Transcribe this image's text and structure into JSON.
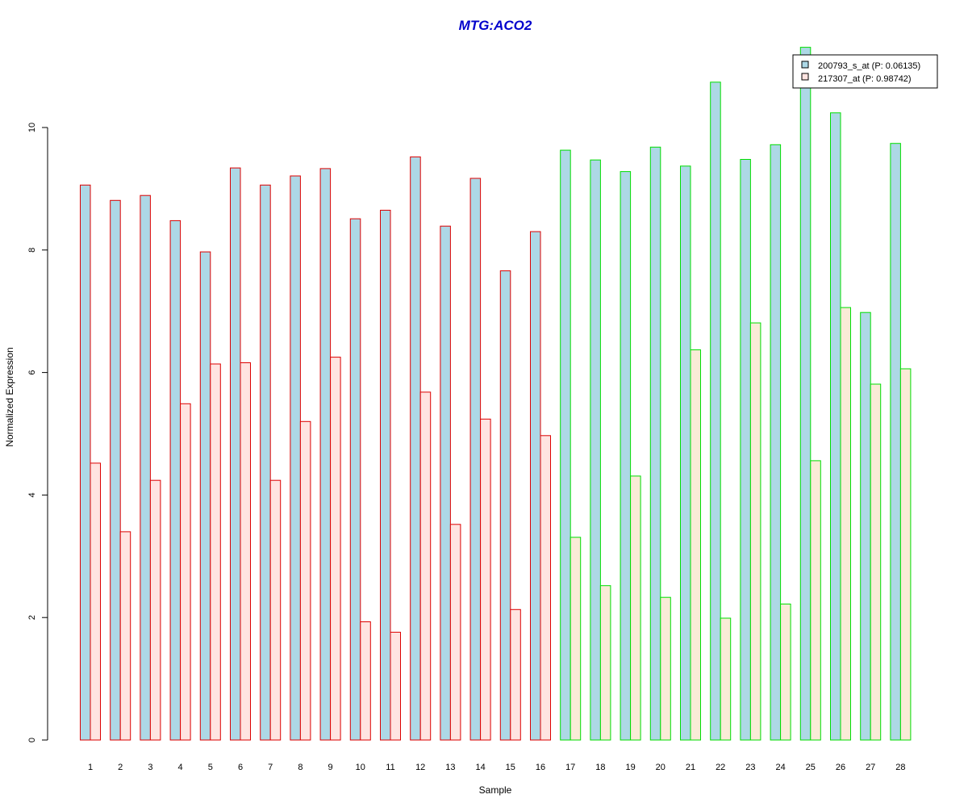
{
  "chart_data": {
    "type": "bar",
    "title": "MTG:ACO2",
    "xlabel": "Sample",
    "ylabel": "Normalized Expression",
    "ylim": [
      0,
      11.3
    ],
    "yticks": [
      0,
      2,
      4,
      6,
      8,
      10
    ],
    "categories": [
      "1",
      "2",
      "3",
      "4",
      "5",
      "6",
      "7",
      "8",
      "9",
      "10",
      "11",
      "12",
      "13",
      "14",
      "15",
      "16",
      "17",
      "18",
      "19",
      "20",
      "21",
      "22",
      "23",
      "24",
      "25",
      "26",
      "27",
      "28"
    ],
    "series": [
      {
        "name": "200793_s_at (P: 0.06135)",
        "fill": "#add8e6",
        "values": [
          9.06,
          8.81,
          8.89,
          8.48,
          7.97,
          9.34,
          9.06,
          9.21,
          9.33,
          8.51,
          8.65,
          9.52,
          8.39,
          9.17,
          7.66,
          8.3,
          9.63,
          9.47,
          9.28,
          9.68,
          9.37,
          10.74,
          9.48,
          9.72,
          11.31,
          10.24,
          6.98,
          9.74
        ]
      },
      {
        "name": "217307_at (P: 0.98742)",
        "fill": "#ffe4e1",
        "values": [
          4.52,
          3.4,
          4.24,
          5.49,
          6.14,
          6.16,
          4.24,
          5.2,
          6.25,
          1.93,
          1.76,
          5.68,
          3.52,
          5.24,
          2.13,
          4.97,
          3.31,
          2.52,
          4.31,
          2.33,
          6.37,
          1.99,
          6.81,
          2.22,
          4.56,
          7.06,
          5.81,
          6.06
        ]
      }
    ],
    "bar_border_colors": [
      "#dd0000",
      "#dd0000",
      "#dd0000",
      "#dd0000",
      "#dd0000",
      "#dd0000",
      "#dd0000",
      "#dd0000",
      "#dd0000",
      "#dd0000",
      "#dd0000",
      "#dd0000",
      "#dd0000",
      "#dd0000",
      "#dd0000",
      "#dd0000",
      "#00dd00",
      "#00dd00",
      "#00dd00",
      "#00dd00",
      "#00dd00",
      "#00dd00",
      "#00dd00",
      "#00dd00",
      "#00dd00",
      "#00dd00",
      "#00dd00",
      "#00dd00"
    ],
    "second_series_fill_group2": "#faebd7",
    "title_color": "#0000cc",
    "legend_position": "top-right",
    "grid": false
  }
}
